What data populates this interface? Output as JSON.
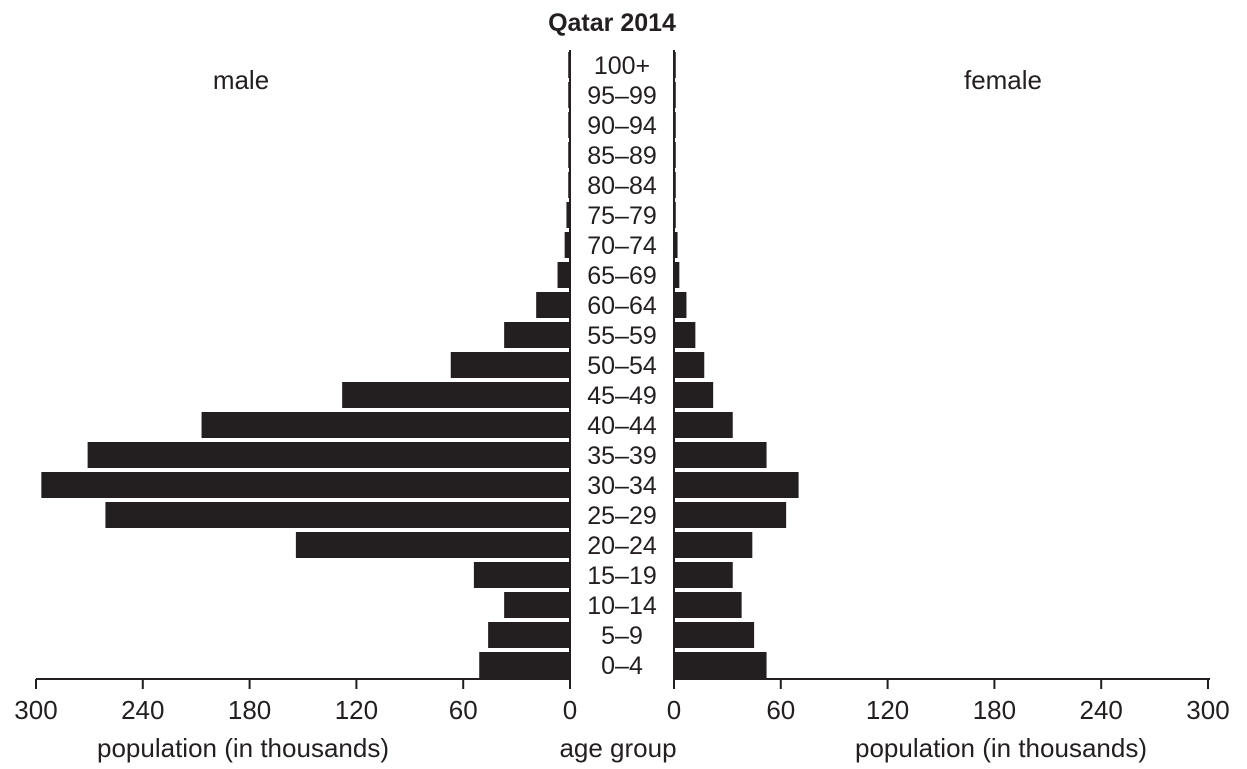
{
  "chart_data": {
    "type": "bar",
    "orientation": "horizontal",
    "layout": "population-pyramid",
    "title": "Qatar 2014",
    "left_label": "male",
    "right_label": "female",
    "categories": [
      "0–4",
      "5–9",
      "10–14",
      "15–19",
      "20–24",
      "25–29",
      "30–34",
      "35–39",
      "40–44",
      "45–49",
      "50–54",
      "55–59",
      "60–64",
      "65–69",
      "70–74",
      "75–79",
      "80–84",
      "85–89",
      "90–94",
      "95–99",
      "100+"
    ],
    "series": [
      {
        "name": "male",
        "values": [
          51,
          46,
          37,
          54,
          154,
          261,
          297,
          271,
          207,
          128,
          67,
          37,
          19,
          7,
          3,
          2,
          1,
          1,
          1,
          1,
          1
        ]
      },
      {
        "name": "female",
        "values": [
          52,
          45,
          38,
          33,
          44,
          63,
          70,
          52,
          33,
          22,
          17,
          12,
          7,
          3,
          2,
          1,
          1,
          1,
          1,
          1,
          1
        ]
      }
    ],
    "xlim": [
      0,
      300
    ],
    "xticks": [
      300,
      240,
      180,
      120,
      60,
      0
    ],
    "xlabel_left": "population (in thousands)",
    "xlabel_center": "age group",
    "xlabel_right": "population (in thousands)",
    "bar_color": "#231f20",
    "grid": false,
    "legend": "none"
  }
}
